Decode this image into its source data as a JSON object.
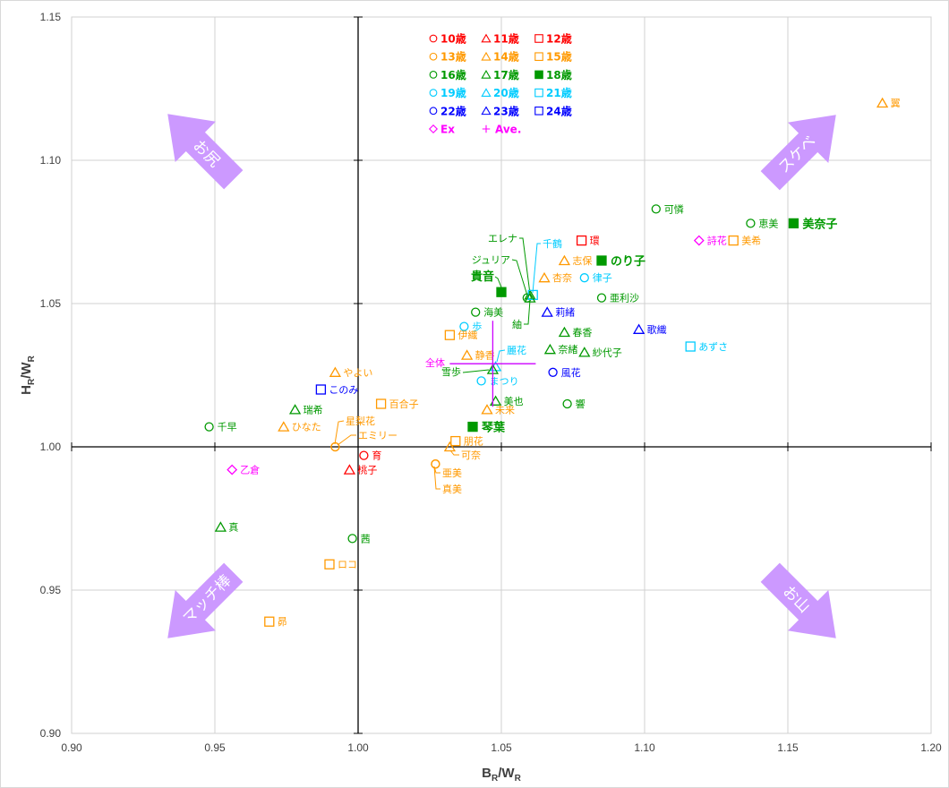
{
  "chart_data": {
    "type": "scatter",
    "title": "",
    "xlabel_parts": [
      "B",
      "R",
      "/W",
      "R"
    ],
    "ylabel_parts": [
      "H",
      "R",
      "/W",
      "R"
    ],
    "xlim": [
      0.9,
      1.2
    ],
    "ylim": [
      0.9,
      1.15
    ],
    "x_ticks": [
      "0.90",
      "0.95",
      "1.00",
      "1.05",
      "1.10",
      "1.15",
      "1.20"
    ],
    "y_ticks": [
      "0.90",
      "0.95",
      "1.00",
      "1.05",
      "1.10",
      "1.15"
    ],
    "grid": true,
    "legend_placement": "top-center",
    "groups": [
      {
        "label": "10歳",
        "color": "#ff0000",
        "marker": "circle"
      },
      {
        "label": "11歳",
        "color": "#ff0000",
        "marker": "triangle"
      },
      {
        "label": "12歳",
        "color": "#ff0000",
        "marker": "square"
      },
      {
        "label": "13歳",
        "color": "#ff9900",
        "marker": "circle"
      },
      {
        "label": "14歳",
        "color": "#ff9900",
        "marker": "triangle"
      },
      {
        "label": "15歳",
        "color": "#ff9900",
        "marker": "square"
      },
      {
        "label": "16歳",
        "color": "#009900",
        "marker": "circle"
      },
      {
        "label": "17歳",
        "color": "#009900",
        "marker": "triangle"
      },
      {
        "label": "18歳",
        "color": "#009900",
        "marker": "filled-square"
      },
      {
        "label": "19歳",
        "color": "#00ccff",
        "marker": "circle"
      },
      {
        "label": "20歳",
        "color": "#00ccff",
        "marker": "triangle"
      },
      {
        "label": "21歳",
        "color": "#00ccff",
        "marker": "square"
      },
      {
        "label": "22歳",
        "color": "#0000ff",
        "marker": "circle"
      },
      {
        "label": "23歳",
        "color": "#0000ff",
        "marker": "triangle"
      },
      {
        "label": "24歳",
        "color": "#0000ff",
        "marker": "square"
      },
      {
        "label": "Ex",
        "color": "#ff00ff",
        "marker": "diamond"
      },
      {
        "label": "Ave.",
        "color": "#cc00ff",
        "marker": "plus"
      }
    ],
    "points": [
      {
        "name": "翼",
        "group": "14歳",
        "x": 1.183,
        "y": 1.12
      },
      {
        "name": "可憐",
        "group": "16歳",
        "x": 1.104,
        "y": 1.083
      },
      {
        "name": "恵美",
        "group": "16歳",
        "x": 1.137,
        "y": 1.078
      },
      {
        "name": "美奈子",
        "group": "18歳",
        "x": 1.152,
        "y": 1.078
      },
      {
        "name": "詩花",
        "group": "Ex",
        "x": 1.119,
        "y": 1.072
      },
      {
        "name": "美希",
        "group": "15歳",
        "x": 1.131,
        "y": 1.072
      },
      {
        "name": "環",
        "group": "12歳",
        "x": 1.078,
        "y": 1.072
      },
      {
        "name": "志保",
        "group": "14歳",
        "x": 1.072,
        "y": 1.065
      },
      {
        "name": "のり子",
        "group": "18歳",
        "x": 1.085,
        "y": 1.065
      },
      {
        "name": "杏奈",
        "group": "14歳",
        "x": 1.065,
        "y": 1.059
      },
      {
        "name": "律子",
        "group": "19歳",
        "x": 1.079,
        "y": 1.059
      },
      {
        "name": "亜利沙",
        "group": "16歳",
        "x": 1.085,
        "y": 1.052
      },
      {
        "name": "貴音",
        "group": "18歳",
        "x": 1.05,
        "y": 1.054
      },
      {
        "name": "エレナ",
        "group": "17歳",
        "x": 1.06,
        "y": 1.053
      },
      {
        "name": "ジュリア",
        "group": "16歳",
        "x": 1.059,
        "y": 1.052
      },
      {
        "name": "千鶴",
        "group": "21歳",
        "x": 1.061,
        "y": 1.053
      },
      {
        "name": "紬",
        "group": "17歳",
        "x": 1.06,
        "y": 1.052
      },
      {
        "name": "海美",
        "group": "16歳",
        "x": 1.041,
        "y": 1.047
      },
      {
        "name": "歩",
        "group": "19歳",
        "x": 1.037,
        "y": 1.042
      },
      {
        "name": "伊織",
        "group": "15歳",
        "x": 1.032,
        "y": 1.039
      },
      {
        "name": "莉緒",
        "group": "23歳",
        "x": 1.066,
        "y": 1.047
      },
      {
        "name": "春香",
        "group": "17歳",
        "x": 1.072,
        "y": 1.04
      },
      {
        "name": "歌織",
        "group": "23歳",
        "x": 1.098,
        "y": 1.041
      },
      {
        "name": "あずさ",
        "group": "21歳",
        "x": 1.116,
        "y": 1.035
      },
      {
        "name": "奈緒",
        "group": "17歳",
        "x": 1.067,
        "y": 1.034
      },
      {
        "name": "紗代子",
        "group": "17歳",
        "x": 1.079,
        "y": 1.033
      },
      {
        "name": "静香",
        "group": "14歳",
        "x": 1.038,
        "y": 1.032
      },
      {
        "name": "麗花",
        "group": "20歳",
        "x": 1.048,
        "y": 1.028
      },
      {
        "name": "雪歩",
        "group": "17歳",
        "x": 1.047,
        "y": 1.027
      },
      {
        "name": "まつり",
        "group": "19歳",
        "x": 1.043,
        "y": 1.023
      },
      {
        "name": "風花",
        "group": "22歳",
        "x": 1.068,
        "y": 1.026
      },
      {
        "name": "美也",
        "group": "17歳",
        "x": 1.048,
        "y": 1.016
      },
      {
        "name": "未来",
        "group": "14歳",
        "x": 1.045,
        "y": 1.013
      },
      {
        "name": "響",
        "group": "16歳",
        "x": 1.073,
        "y": 1.015
      },
      {
        "name": "琴葉",
        "group": "18歳",
        "x": 1.04,
        "y": 1.007
      },
      {
        "name": "朋花",
        "group": "15歳",
        "x": 1.034,
        "y": 1.002
      },
      {
        "name": "可奈",
        "group": "14歳",
        "x": 1.032,
        "y": 1.0
      },
      {
        "name": "亜美",
        "group": "13歳",
        "x": 1.027,
        "y": 0.994
      },
      {
        "name": "真美",
        "group": "13歳",
        "x": 1.027,
        "y": 0.994
      },
      {
        "name": "星梨花",
        "group": "13歳",
        "x": 0.992,
        "y": 1.0
      },
      {
        "name": "エミリー",
        "group": "13歳",
        "x": 0.992,
        "y": 1.0
      },
      {
        "name": "育",
        "group": "10歳",
        "x": 1.002,
        "y": 0.997
      },
      {
        "name": "桃子",
        "group": "11歳",
        "x": 0.997,
        "y": 0.992
      },
      {
        "name": "乙倉",
        "group": "Ex",
        "x": 0.956,
        "y": 0.992
      },
      {
        "name": "千早",
        "group": "16歳",
        "x": 0.948,
        "y": 1.007
      },
      {
        "name": "瑞希",
        "group": "17歳",
        "x": 0.978,
        "y": 1.013
      },
      {
        "name": "ひなた",
        "group": "14歳",
        "x": 0.974,
        "y": 1.007
      },
      {
        "name": "やよい",
        "group": "14歳",
        "x": 0.992,
        "y": 1.026
      },
      {
        "name": "このみ",
        "group": "24歳",
        "x": 0.987,
        "y": 1.02
      },
      {
        "name": "百合子",
        "group": "15歳",
        "x": 1.008,
        "y": 1.015
      },
      {
        "name": "真",
        "group": "17歳",
        "x": 0.952,
        "y": 0.972
      },
      {
        "name": "茜",
        "group": "16歳",
        "x": 0.998,
        "y": 0.968
      },
      {
        "name": "ロコ",
        "group": "15歳",
        "x": 0.99,
        "y": 0.959
      },
      {
        "name": "昴",
        "group": "15歳",
        "x": 0.969,
        "y": 0.939
      }
    ],
    "average": {
      "name": "全体",
      "group": "Ave.",
      "x": 1.047,
      "y": 1.029,
      "x_err": 0.015,
      "y_err": 0.015
    },
    "quadrant_arrows": [
      {
        "label": "お尻",
        "direction": "top-left"
      },
      {
        "label": "スケベ",
        "direction": "top-right"
      },
      {
        "label": "マッチ棒",
        "direction": "bottom-left"
      },
      {
        "label": "お山",
        "direction": "bottom-right"
      }
    ],
    "arrow_color": "#cc99ff"
  }
}
